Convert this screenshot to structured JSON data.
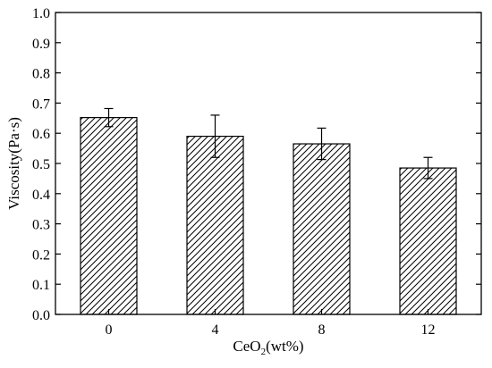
{
  "chart_data": {
    "type": "bar",
    "categories": [
      "0",
      "4",
      "8",
      "12"
    ],
    "values": [
      0.652,
      0.59,
      0.565,
      0.485
    ],
    "errors": [
      0.03,
      0.07,
      0.052,
      0.035
    ],
    "ylabel": "Viscosity(Pa·s)",
    "xlabel_main": "CeO",
    "xlabel_sub": "2",
    "xlabel_tail": "(wt%)",
    "ylim": [
      0.0,
      1.0
    ],
    "yticks": [
      "0.0",
      "0.1",
      "0.2",
      "0.3",
      "0.4",
      "0.5",
      "0.6",
      "0.7",
      "0.8",
      "0.9",
      "1.0"
    ],
    "grid": false,
    "fill": "hatched",
    "color": "#000000"
  }
}
